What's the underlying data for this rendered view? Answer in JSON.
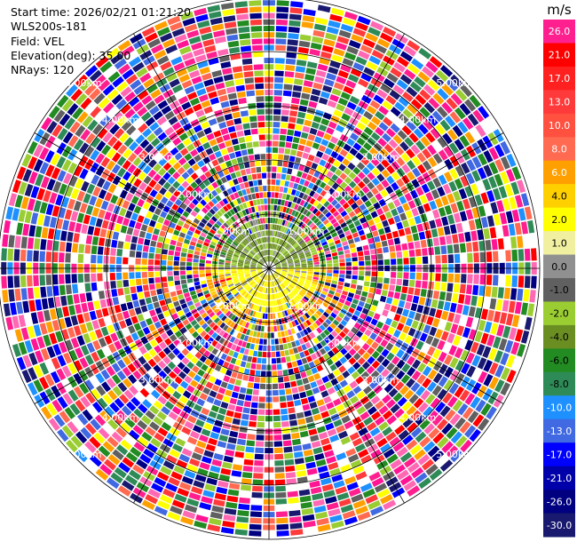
{
  "header": {
    "start_time": "Start time: 2026/02/21 01:21:20",
    "instrument": "WLS200s-181",
    "field": "Field: VEL",
    "elevation": "Elevation(deg): 35.00",
    "nrays": "NRays: 120"
  },
  "chart_data": {
    "type": "heatmap",
    "projection": "polar (PPI)",
    "field": "VEL",
    "n_rays": 120,
    "elevation_deg": 35.0,
    "range_ring_labels": [
      "1.00km",
      "2.00km",
      "3.00km",
      "4.00km",
      "5.00km"
    ],
    "colorbar": {
      "unit": "m/s",
      "ticks": [
        "26.0",
        "21.0",
        "17.0",
        "13.0",
        "10.0",
        "8.0",
        "6.0",
        "4.0",
        "2.0",
        "1.0",
        "0.0",
        "-1.0",
        "-2.0",
        "-4.0",
        "-6.0",
        "-8.0",
        "-10.0",
        "-13.0",
        "-17.0",
        "-21.0",
        "-26.0",
        "-30.0"
      ],
      "colors": [
        "#ff1f8e",
        "#ff0000",
        "#ff2020",
        "#ff3a3a",
        "#ff5040",
        "#ff6a50",
        "#ffa000",
        "#ffd000",
        "#ffff00",
        "#f0f0a0",
        "#909090",
        "#606060",
        "#9acd32",
        "#6b8e23",
        "#228b22",
        "#2e8b57",
        "#1e90ff",
        "#4169e1",
        "#0000ff",
        "#0000aa",
        "#000080",
        "#191970"
      ]
    },
    "pattern": {
      "near_range_km": 0.9,
      "near_north_velocity": "-1.0 to -4.0 m/s (green)",
      "near_south_velocity": "2.0 to 4.0 m/s (yellow)",
      "far_range": "noise (random velocities)"
    }
  }
}
